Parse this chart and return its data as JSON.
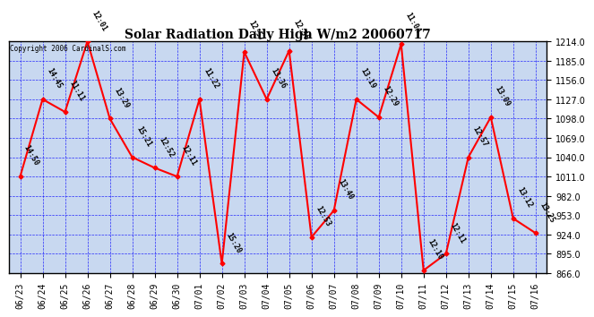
{
  "title": "Solar Radiation Daily High W/m2 20060717",
  "copyright": "Copyright 2006 CardinalS.com",
  "dates": [
    "06/23",
    "06/24",
    "06/25",
    "06/26",
    "06/27",
    "06/28",
    "06/29",
    "06/30",
    "07/01",
    "07/02",
    "07/03",
    "07/04",
    "07/05",
    "07/06",
    "07/07",
    "07/08",
    "07/09",
    "07/10",
    "07/11",
    "07/12",
    "07/13",
    "07/14",
    "07/15",
    "07/16"
  ],
  "values": [
    1011.0,
    1127.0,
    1108.0,
    1214.0,
    1098.0,
    1040.0,
    1024.0,
    1011.0,
    1127.0,
    880.0,
    1198.0,
    1127.0,
    1200.0,
    920.0,
    960.0,
    1127.0,
    1100.0,
    1210.0,
    870.0,
    895.0,
    1040.0,
    1100.0,
    948.0,
    926.0
  ],
  "labels": [
    "14:50",
    "14:45",
    "11:11",
    "12:01",
    "13:29",
    "15:21",
    "12:52",
    "12:11",
    "11:22",
    "15:20",
    "12:57",
    "13:36",
    "12:56",
    "12:53",
    "13:40",
    "13:19",
    "12:29",
    "11:04",
    "12:10",
    "12:11",
    "12:57",
    "13:09",
    "13:12",
    "13:25"
  ],
  "ylim_min": 866.0,
  "ylim_max": 1214.0,
  "yticks": [
    866.0,
    895.0,
    924.0,
    953.0,
    982.0,
    1011.0,
    1040.0,
    1069.0,
    1098.0,
    1127.0,
    1156.0,
    1185.0,
    1214.0
  ],
  "line_color": "red",
  "marker_color": "red",
  "bg_color": "#c8d8f0",
  "grid_color": "blue",
  "title_fontsize": 10,
  "tick_fontsize": 7,
  "label_fontsize": 6,
  "copyright_fontsize": 5.5
}
